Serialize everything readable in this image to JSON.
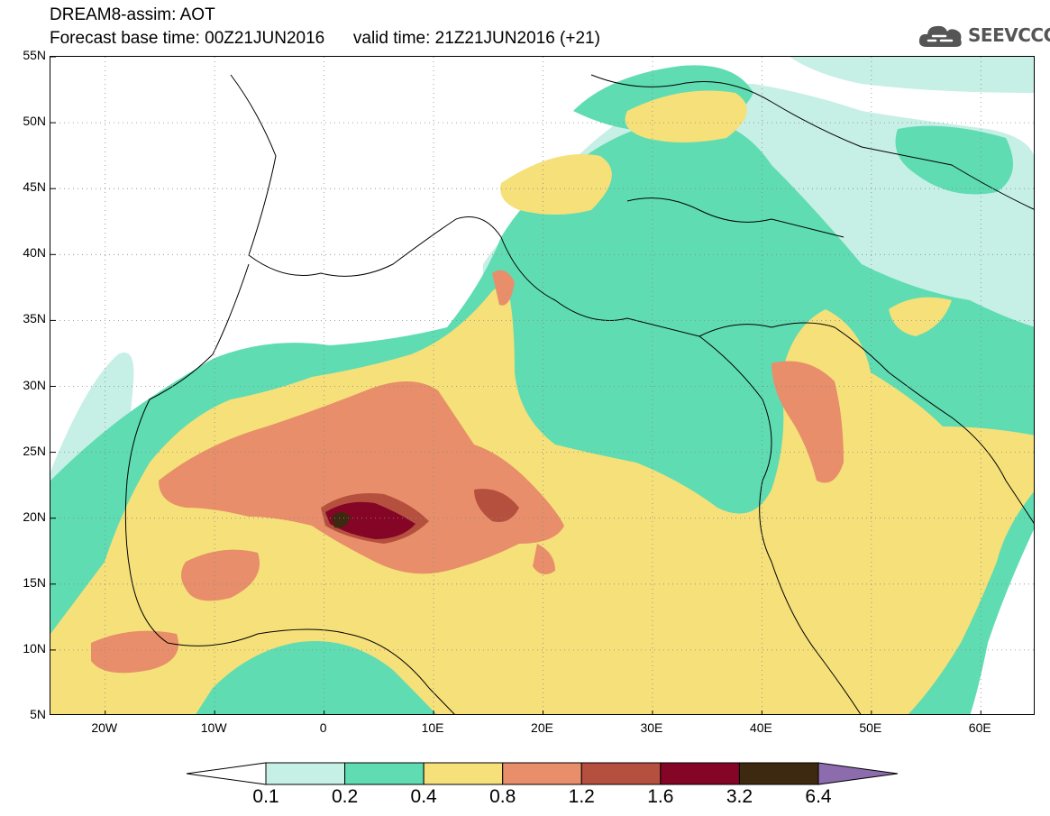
{
  "header": {
    "title_line1": "DREAM8-assim: AOT",
    "title_line2": "Forecast base time: 00Z21JUN2016      valid time: 21Z21JUN2016 (+21)",
    "logo_text": "SEEVCCC"
  },
  "map": {
    "lat_labels": [
      "55N",
      "50N",
      "45N",
      "40N",
      "35N",
      "30N",
      "25N",
      "20N",
      "15N",
      "10N",
      "5N"
    ],
    "lon_labels": [
      "20W",
      "10W",
      "0",
      "10E",
      "20E",
      "30E",
      "40E",
      "50E",
      "60E"
    ],
    "lon_range": [
      -25,
      65
    ],
    "lat_range": [
      5,
      55
    ],
    "grid": "dotted"
  },
  "colorbar": {
    "labels": [
      "0.1",
      "0.2",
      "0.4",
      "0.8",
      "1.2",
      "1.6",
      "3.2",
      "6.4"
    ],
    "colors": [
      "#ffffff",
      "#c6efe6",
      "#5fdcb2",
      "#f5e07a",
      "#e88e6a",
      "#b5503f",
      "#850526",
      "#3d2810",
      "#8d6cae"
    ]
  }
}
